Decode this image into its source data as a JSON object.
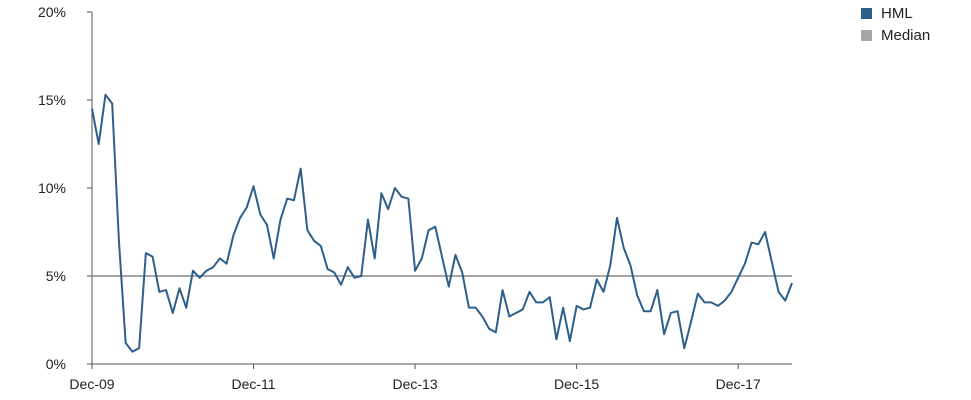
{
  "chart_data": {
    "type": "line",
    "title": "",
    "xlabel": "",
    "ylabel": "",
    "ylim": [
      0,
      20
    ],
    "y_ticks": [
      "0%",
      "5%",
      "10%",
      "15%",
      "20%"
    ],
    "x_ticks": [
      {
        "label": "Dec-09",
        "month": "2009-12"
      },
      {
        "label": "Dec-11",
        "month": "2011-12"
      },
      {
        "label": "Dec-13",
        "month": "2013-12"
      },
      {
        "label": "Dec-15",
        "month": "2015-12"
      },
      {
        "label": "Dec-17",
        "month": "2017-12"
      }
    ],
    "x_start": "2009-12",
    "grid": false,
    "legend_position": "top-right",
    "series": [
      {
        "name": "HML",
        "color": "#2e5f8a",
        "values": [
          14.5,
          12.5,
          15.3,
          14.8,
          7.0,
          1.2,
          0.7,
          0.9,
          6.3,
          6.1,
          4.1,
          4.2,
          2.9,
          4.3,
          3.2,
          5.3,
          4.9,
          5.3,
          5.5,
          6.0,
          5.7,
          7.3,
          8.3,
          8.9,
          10.1,
          8.5,
          7.9,
          6.0,
          8.2,
          9.4,
          9.3,
          11.1,
          7.6,
          7.0,
          6.7,
          5.4,
          5.2,
          4.5,
          5.5,
          4.9,
          5.0,
          8.2,
          6.0,
          9.7,
          8.8,
          10.0,
          9.5,
          9.4,
          5.3,
          6.0,
          7.6,
          7.8,
          6.1,
          4.4,
          6.2,
          5.2,
          3.2,
          3.2,
          2.7,
          2.0,
          1.8,
          4.2,
          2.7,
          2.9,
          3.1,
          4.1,
          3.5,
          3.5,
          3.8,
          1.4,
          3.2,
          1.3,
          3.3,
          3.1,
          3.2,
          4.8,
          4.1,
          5.6,
          8.3,
          6.6,
          5.6,
          3.9,
          3.0,
          3.0,
          4.2,
          1.7,
          2.9,
          3.0,
          0.9,
          2.4,
          4.0,
          3.5,
          3.5,
          3.3,
          3.6,
          4.1,
          4.9,
          5.7,
          6.9,
          6.8,
          7.5,
          5.8,
          4.1,
          3.6,
          4.6
        ]
      },
      {
        "name": "Median",
        "color": "#a6a6a6",
        "values": [
          5.0,
          5.0
        ]
      }
    ]
  }
}
